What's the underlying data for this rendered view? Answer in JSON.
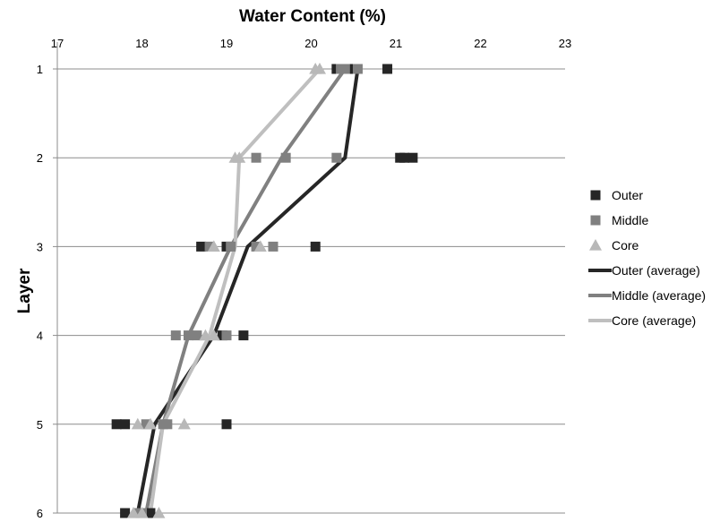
{
  "chart_data": {
    "type": "scatter",
    "title": "",
    "xlabel": "Water Content (%)",
    "ylabel": "Layer",
    "x_axis_position": "top",
    "y_axis_reversed": true,
    "xlim": [
      17,
      23
    ],
    "ylim": [
      1,
      6
    ],
    "x_ticks": [
      "17",
      "18",
      "19",
      "20",
      "21",
      "22",
      "23"
    ],
    "y_ticks": [
      "1",
      "2",
      "3",
      "4",
      "5",
      "6"
    ],
    "grid": "horizontal",
    "legend_position": "right",
    "series": [
      {
        "name": "Outer",
        "kind": "marker",
        "marker": "square",
        "color": "#262626",
        "points": [
          {
            "x": 20.3,
            "y": 1
          },
          {
            "x": 20.5,
            "y": 1
          },
          {
            "x": 20.9,
            "y": 1
          },
          {
            "x": 21.05,
            "y": 2
          },
          {
            "x": 21.1,
            "y": 2
          },
          {
            "x": 21.2,
            "y": 2
          },
          {
            "x": 18.7,
            "y": 3
          },
          {
            "x": 19.0,
            "y": 3
          },
          {
            "x": 20.05,
            "y": 3
          },
          {
            "x": 18.95,
            "y": 4
          },
          {
            "x": 19.2,
            "y": 4
          },
          {
            "x": 17.7,
            "y": 5
          },
          {
            "x": 17.8,
            "y": 5
          },
          {
            "x": 19.0,
            "y": 5
          },
          {
            "x": 17.8,
            "y": 6
          },
          {
            "x": 18.05,
            "y": 6
          },
          {
            "x": 18.1,
            "y": 6
          }
        ]
      },
      {
        "name": "Middle",
        "kind": "marker",
        "marker": "square",
        "color": "#808080",
        "points": [
          {
            "x": 20.35,
            "y": 1
          },
          {
            "x": 20.4,
            "y": 1
          },
          {
            "x": 20.55,
            "y": 1
          },
          {
            "x": 19.35,
            "y": 2
          },
          {
            "x": 19.7,
            "y": 2
          },
          {
            "x": 20.3,
            "y": 2
          },
          {
            "x": 18.8,
            "y": 3
          },
          {
            "x": 19.05,
            "y": 3
          },
          {
            "x": 19.35,
            "y": 3
          },
          {
            "x": 19.55,
            "y": 3
          },
          {
            "x": 18.4,
            "y": 4
          },
          {
            "x": 18.55,
            "y": 4
          },
          {
            "x": 18.65,
            "y": 4
          },
          {
            "x": 19.0,
            "y": 4
          },
          {
            "x": 18.05,
            "y": 5
          },
          {
            "x": 18.25,
            "y": 5
          },
          {
            "x": 18.3,
            "y": 5
          },
          {
            "x": 17.95,
            "y": 6
          },
          {
            "x": 18.0,
            "y": 6
          }
        ]
      },
      {
        "name": "Core",
        "kind": "marker",
        "marker": "triangle",
        "color": "#b8b8b8",
        "points": [
          {
            "x": 20.05,
            "y": 1
          },
          {
            "x": 20.1,
            "y": 1
          },
          {
            "x": 19.1,
            "y": 2
          },
          {
            "x": 19.15,
            "y": 2
          },
          {
            "x": 18.85,
            "y": 3
          },
          {
            "x": 19.4,
            "y": 3
          },
          {
            "x": 18.75,
            "y": 4
          },
          {
            "x": 18.85,
            "y": 4
          },
          {
            "x": 17.95,
            "y": 5
          },
          {
            "x": 18.1,
            "y": 5
          },
          {
            "x": 18.5,
            "y": 5
          },
          {
            "x": 17.9,
            "y": 6
          },
          {
            "x": 18.0,
            "y": 6
          },
          {
            "x": 18.2,
            "y": 6
          }
        ]
      },
      {
        "name": "Outer (average)",
        "kind": "line",
        "color": "#262626",
        "points": [
          {
            "x": 20.55,
            "y": 1
          },
          {
            "x": 20.4,
            "y": 2
          },
          {
            "x": 19.25,
            "y": 3
          },
          {
            "x": 18.85,
            "y": 4
          },
          {
            "x": 18.15,
            "y": 5
          },
          {
            "x": 17.95,
            "y": 6
          }
        ]
      },
      {
        "name": "Middle (average)",
        "kind": "line",
        "color": "#808080",
        "points": [
          {
            "x": 20.4,
            "y": 1
          },
          {
            "x": 19.65,
            "y": 2
          },
          {
            "x": 19.05,
            "y": 3
          },
          {
            "x": 18.55,
            "y": 4
          },
          {
            "x": 18.25,
            "y": 5
          },
          {
            "x": 18.05,
            "y": 6
          }
        ]
      },
      {
        "name": "Core (average)",
        "kind": "line",
        "color": "#bfbfbf",
        "points": [
          {
            "x": 20.1,
            "y": 1
          },
          {
            "x": 19.15,
            "y": 2
          },
          {
            "x": 19.1,
            "y": 3
          },
          {
            "x": 18.8,
            "y": 4
          },
          {
            "x": 18.25,
            "y": 5
          },
          {
            "x": 18.1,
            "y": 6
          }
        ]
      }
    ]
  }
}
